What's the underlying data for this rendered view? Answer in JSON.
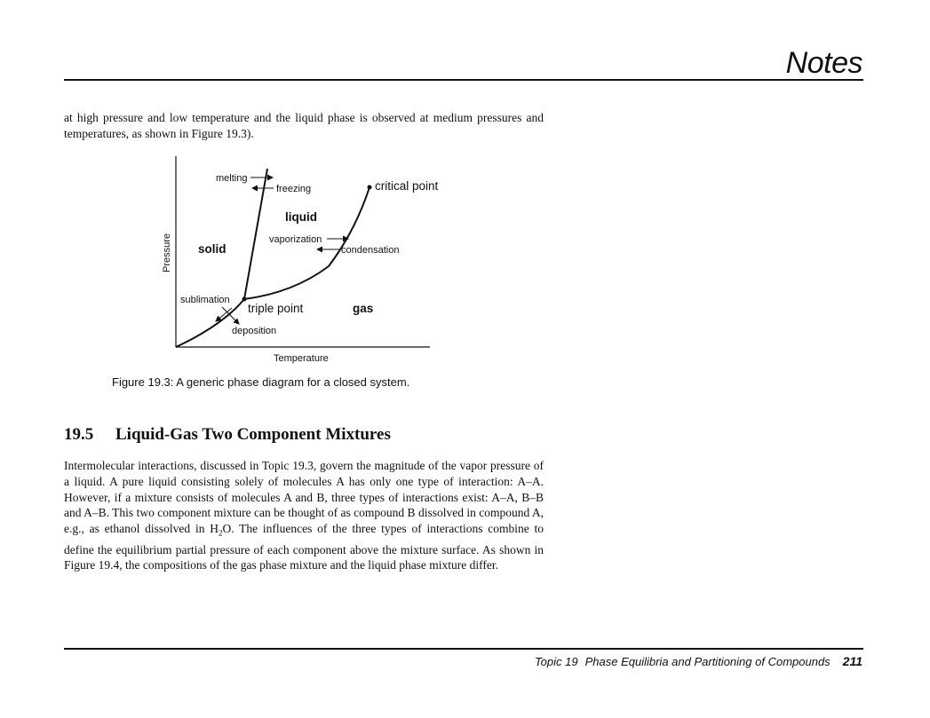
{
  "header": {
    "title": "Notes"
  },
  "body": {
    "intro_paragraph": "at high pressure and low temperature and the liquid phase is observed at medium pressures and temperatures, as shown in Figure 19.3).",
    "section_number": "19.5",
    "section_title": "Liquid-Gas Two Component Mixtures",
    "section_paragraph_before_sub": "Intermolecular interactions, discussed in Topic 19.3, govern the magnitude of the vapor pressure of a liquid. A pure liquid consisting solely of molecules A has only one type of interaction: A–A. However, if a mixture consists of molecules A and B, three types of interactions exist: A–A, B–B and A–B. This two component mixture can be thought of as compound B dissolved in compound A, e.g., as ethanol dissolved in H",
    "section_paragraph_sub": "2",
    "section_paragraph_after_sub": "O. The influences of the three types of interactions combine to define the equilibrium partial pressure of each component above the mixture surface. As shown in Figure 19.4, the compositions of the gas phase mixture and the liquid phase mixture differ."
  },
  "figure": {
    "caption": "Figure 19.3: A generic phase diagram for a closed system.",
    "x_axis_label": "Temperature",
    "y_axis_label": "Pressure",
    "regions": {
      "solid": "solid",
      "liquid": "liquid",
      "gas": "gas"
    },
    "points": {
      "triple": "triple point",
      "critical": "critical point"
    },
    "transitions": {
      "melting": "melting",
      "freezing": "freezing",
      "vaporization": "vaporization",
      "condensation": "condensation",
      "sublimation": "sublimation",
      "deposition": "deposition"
    },
    "line_color": "#111111"
  },
  "footer": {
    "topic": "Topic 19",
    "topic_title": "Phase Equilibria and Partitioning of Compounds",
    "page_number": "211"
  }
}
